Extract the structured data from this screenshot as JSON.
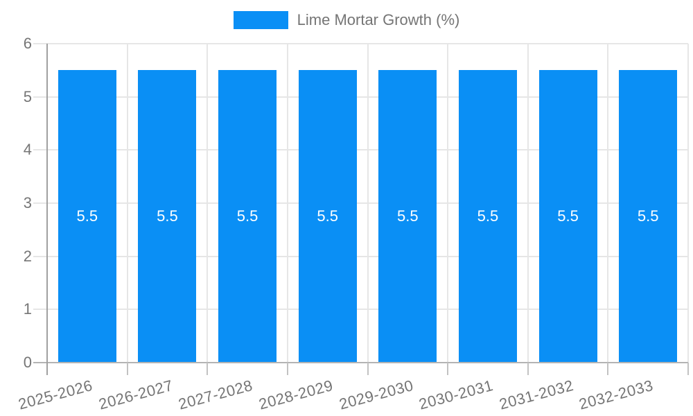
{
  "chart_data": {
    "type": "bar",
    "title": "Lime Mortar Growth (%)",
    "legend": {
      "position": "top",
      "entries": [
        "Lime Mortar Growth (%)"
      ]
    },
    "categories": [
      "2025-2026",
      "2026-2027",
      "2027-2028",
      "2028-2029",
      "2029-2030",
      "2030-2031",
      "2031-2032",
      "2032-2033"
    ],
    "series": [
      {
        "name": "Lime Mortar Growth (%)",
        "values": [
          5.5,
          5.5,
          5.5,
          5.5,
          5.5,
          5.5,
          5.5,
          5.5
        ]
      }
    ],
    "bar_labels": [
      "5.5",
      "5.5",
      "5.5",
      "5.5",
      "5.5",
      "5.5",
      "5.5",
      "5.5"
    ],
    "xlabel": "",
    "ylabel": "",
    "ylim": [
      0,
      6
    ],
    "yticks": [
      0,
      1,
      2,
      3,
      4,
      5,
      6
    ],
    "grid": true,
    "x_label_rotation_deg": -15,
    "colors": {
      "bar": "#0a8ff5",
      "bar_label": "#ffffff",
      "axis_text": "#757575",
      "legend_text": "#757575",
      "grid_line": "#e6e6e6",
      "baseline": "#b3b3b3",
      "axis_line": "#a0a0a0",
      "tick_stub": "#c2c2c2",
      "background": "#ffffff"
    }
  }
}
